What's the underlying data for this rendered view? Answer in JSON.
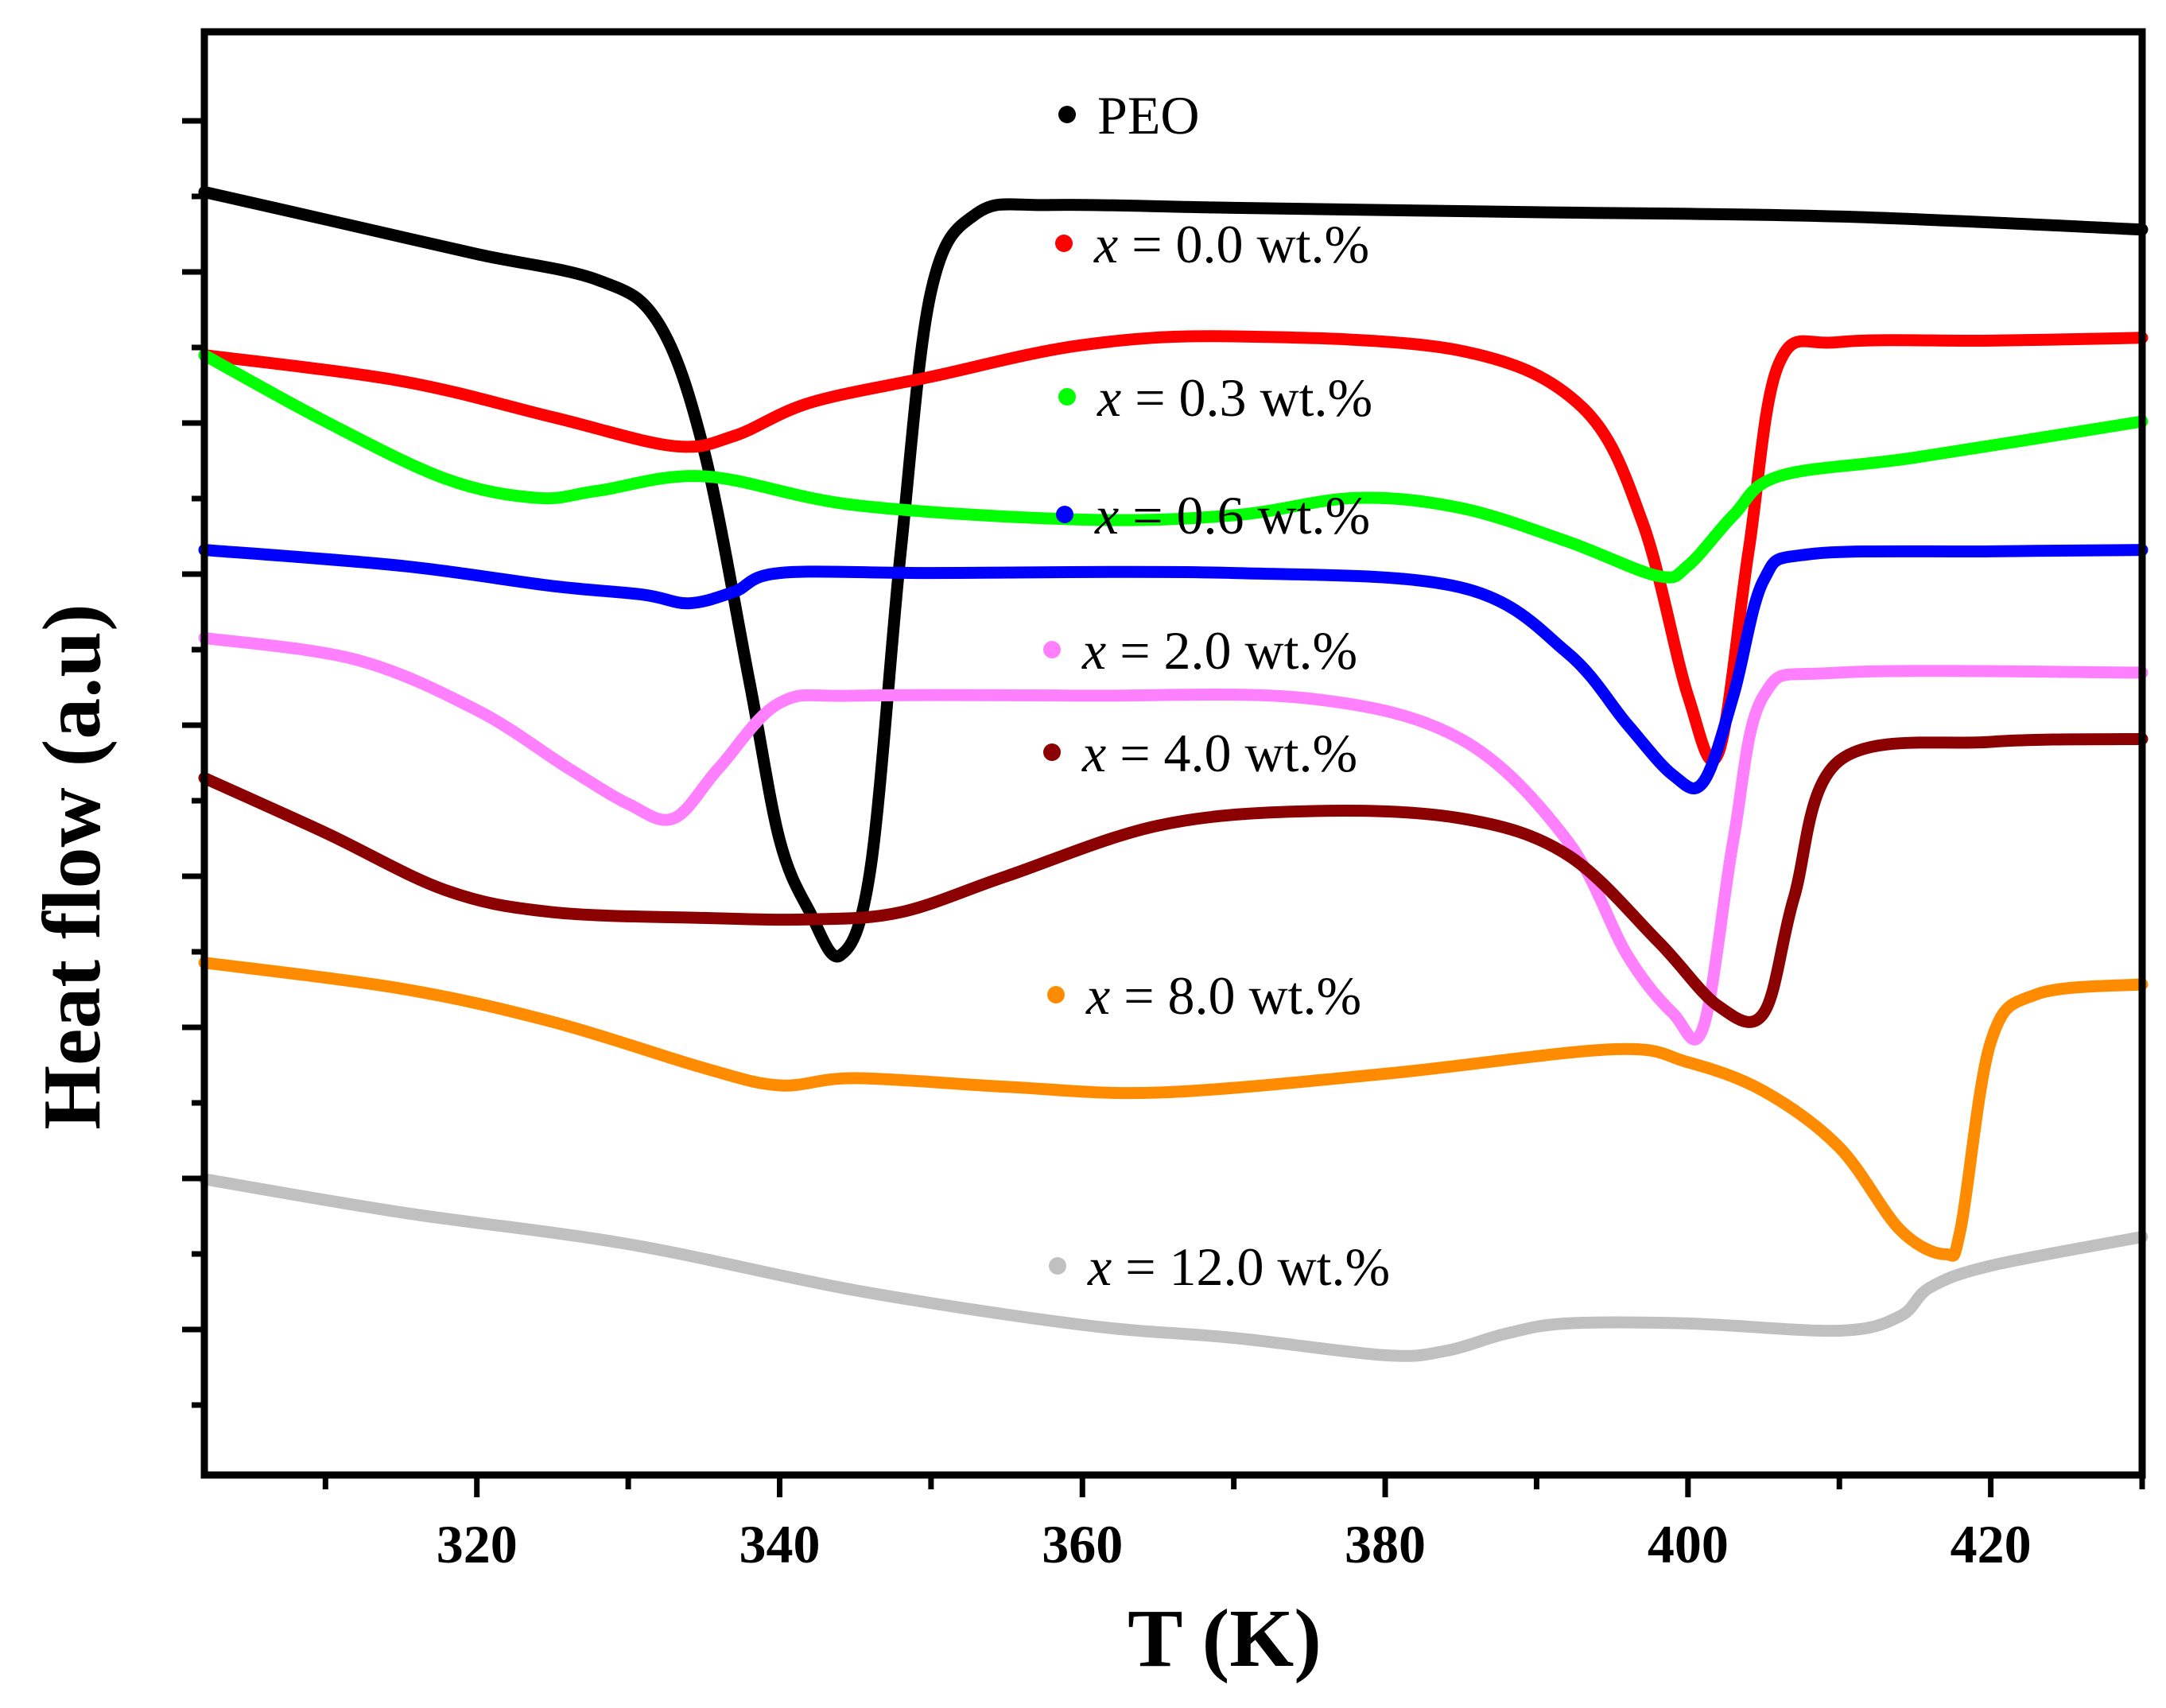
{
  "chart_data": {
    "type": "line",
    "title": "",
    "xlabel": "T (K)",
    "ylabel": "Heat flow (a.u)",
    "xlim": [
      302,
      430
    ],
    "ylim": [
      0,
      10
    ],
    "x_ticks": [
      320,
      340,
      360,
      380,
      400,
      420
    ],
    "x_tick_labels": [
      "320",
      "340",
      "360",
      "380",
      "400",
      "420"
    ],
    "y_ticks_unlabeled": true,
    "grid": false,
    "legend_position": "center (inside plot, beside curves)",
    "series": [
      {
        "name": "PEO",
        "legend_text": "PEO",
        "color": "#000000",
        "x": [
          302,
          310,
          320,
          328,
          332,
          335,
          338,
          340,
          342,
          344,
          346,
          348,
          350,
          353,
          358,
          370,
          390,
          410,
          430
        ],
        "y": [
          8.89,
          8.7,
          8.46,
          8.28,
          7.98,
          7.1,
          5.5,
          4.4,
          3.9,
          3.6,
          4.2,
          6.4,
          8.2,
          8.74,
          8.8,
          8.78,
          8.75,
          8.72,
          8.63
        ]
      },
      {
        "name": "x = 0.0 wt.%",
        "legend_prefix": "x",
        "legend_suffix": " = 0.0 wt.%",
        "color": "#ff0000",
        "x": [
          302,
          315,
          325,
          333,
          337,
          342,
          350,
          360,
          370,
          385,
          393,
          397,
          400,
          402,
          404,
          406,
          410,
          420,
          430
        ],
        "y": [
          7.76,
          7.58,
          7.33,
          7.13,
          7.2,
          7.43,
          7.61,
          7.83,
          7.89,
          7.79,
          7.4,
          6.6,
          5.4,
          5.0,
          6.4,
          7.7,
          7.85,
          7.86,
          7.88
        ]
      },
      {
        "name": "x = 0.3 wt.%",
        "legend_prefix": "x",
        "legend_suffix": " = 0.3 wt.%",
        "color": "#00ff00",
        "x": [
          302,
          310,
          318,
          324,
          328,
          335,
          345,
          360,
          370,
          378,
          385,
          392,
          398,
          400,
          403,
          406,
          415,
          430
        ],
        "y": [
          7.76,
          7.3,
          6.9,
          6.77,
          6.82,
          6.92,
          6.72,
          6.62,
          6.65,
          6.77,
          6.7,
          6.47,
          6.23,
          6.3,
          6.65,
          6.92,
          7.05,
          7.3
        ]
      },
      {
        "name": "x = 0.6 wt.%",
        "legend_prefix": "x",
        "legend_suffix": " = 0.6 wt.%",
        "color": "#0000ff",
        "x": [
          302,
          315,
          325,
          331,
          334,
          337,
          340,
          350,
          370,
          385,
          392,
          396,
          399,
          401,
          403,
          405,
          408,
          420,
          430
        ],
        "y": [
          6.41,
          6.3,
          6.16,
          6.1,
          6.04,
          6.12,
          6.25,
          6.25,
          6.25,
          6.15,
          5.7,
          5.2,
          4.85,
          4.8,
          5.4,
          6.2,
          6.38,
          6.4,
          6.41
        ]
      },
      {
        "name": "x = 2.0 wt.%",
        "legend_prefix": "x",
        "legend_suffix": " = 2.0 wt.%",
        "color": "#ff80ff",
        "x": [
          302,
          312,
          320,
          326,
          330,
          333,
          336,
          340,
          345,
          360,
          375,
          385,
          392,
          396,
          399,
          401,
          403,
          405,
          410,
          430
        ],
        "y": [
          5.8,
          5.65,
          5.3,
          4.9,
          4.65,
          4.55,
          4.9,
          5.35,
          5.4,
          5.4,
          5.38,
          5.1,
          4.4,
          3.6,
          3.2,
          3.1,
          4.4,
          5.4,
          5.56,
          5.56
        ]
      },
      {
        "name": "x = 4.0 wt.%",
        "legend_prefix": "x",
        "legend_suffix": " = 4.0 wt.%",
        "color": "#8b0000",
        "x": [
          302,
          310,
          318,
          325,
          335,
          342,
          348,
          355,
          365,
          375,
          385,
          392,
          398,
          402,
          405,
          407,
          410,
          420,
          430
        ],
        "y": [
          4.83,
          4.45,
          4.05,
          3.9,
          3.86,
          3.85,
          3.9,
          4.15,
          4.5,
          4.6,
          4.55,
          4.3,
          3.7,
          3.25,
          3.2,
          4.0,
          4.95,
          5.08,
          5.1
        ]
      },
      {
        "name": "x = 8.0 wt.%",
        "legend_prefix": "x",
        "legend_suffix": " = 8.0 wt.%",
        "color": "#ff8c00",
        "x": [
          302,
          315,
          325,
          335,
          340,
          345,
          355,
          365,
          380,
          395,
          400,
          405,
          410,
          414,
          417,
          418,
          420,
          423,
          430
        ],
        "y": [
          3.55,
          3.37,
          3.14,
          2.82,
          2.7,
          2.75,
          2.69,
          2.65,
          2.78,
          2.95,
          2.86,
          2.66,
          2.27,
          1.7,
          1.53,
          1.7,
          3.0,
          3.33,
          3.4
        ]
      },
      {
        "name": "x = 12.0 wt.%",
        "legend_prefix": "x",
        "legend_suffix": " = 12.0 wt.%",
        "color": "#c0c0c0",
        "x": [
          302,
          315,
          330,
          345,
          360,
          370,
          380,
          384,
          388,
          392,
          400,
          410,
          414,
          416,
          420,
          430
        ],
        "y": [
          2.05,
          1.82,
          1.6,
          1.28,
          1.04,
          0.95,
          0.83,
          0.86,
          0.98,
          1.05,
          1.05,
          1.0,
          1.1,
          1.3,
          1.45,
          1.65
        ]
      }
    ]
  }
}
